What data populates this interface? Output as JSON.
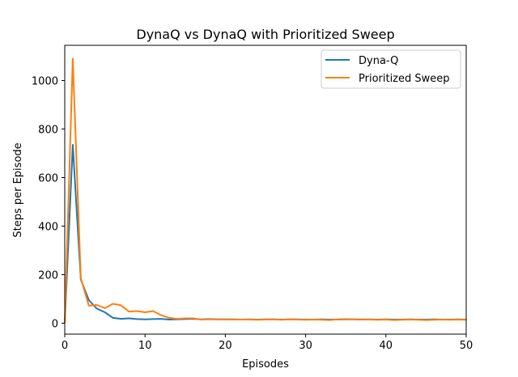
{
  "chart_data": {
    "type": "line",
    "title": "DynaQ vs DynaQ with Prioritized Sweep",
    "xlabel": "Episodes",
    "ylabel": "Steps per Episode",
    "xlim": [
      0,
      50
    ],
    "ylim": [
      -45,
      1145
    ],
    "x_ticks": [
      0,
      10,
      20,
      30,
      40,
      50
    ],
    "y_ticks": [
      0,
      200,
      400,
      600,
      800,
      1000
    ],
    "grid": false,
    "legend_position": "top-right",
    "series": [
      {
        "name": "Dyna-Q",
        "color": "#1f77b4",
        "x": [
          0,
          1,
          2,
          3,
          4,
          5,
          6,
          7,
          8,
          9,
          10,
          11,
          12,
          13,
          14,
          15,
          16,
          17,
          18,
          19,
          20,
          21,
          22,
          23,
          24,
          25,
          26,
          27,
          28,
          29,
          30,
          31,
          32,
          33,
          34,
          35,
          36,
          37,
          38,
          39,
          40,
          41,
          42,
          43,
          44,
          45,
          46,
          47,
          48,
          49,
          50
        ],
        "values": [
          0,
          735,
          180,
          95,
          60,
          45,
          22,
          18,
          20,
          17,
          16,
          17,
          18,
          15,
          16,
          17,
          18,
          16,
          17,
          16,
          16,
          16,
          15,
          16,
          15,
          16,
          16,
          15,
          16,
          16,
          15,
          15,
          16,
          15,
          15,
          16,
          16,
          15,
          16,
          15,
          16,
          15,
          15,
          16,
          15,
          15,
          16,
          15,
          15,
          16,
          15
        ]
      },
      {
        "name": "Prioritized Sweep",
        "color": "#ff7f0e",
        "x": [
          0,
          1,
          2,
          3,
          4,
          5,
          6,
          7,
          8,
          9,
          10,
          11,
          12,
          13,
          14,
          15,
          16,
          17,
          18,
          19,
          20,
          21,
          22,
          23,
          24,
          25,
          26,
          27,
          28,
          29,
          30,
          31,
          32,
          33,
          34,
          35,
          36,
          37,
          38,
          39,
          40,
          41,
          42,
          43,
          44,
          45,
          46,
          47,
          48,
          49,
          50
        ],
        "values": [
          0,
          1090,
          185,
          72,
          75,
          62,
          80,
          74,
          48,
          50,
          45,
          50,
          33,
          22,
          18,
          20,
          20,
          15,
          16,
          16,
          16,
          15,
          15,
          15,
          14,
          15,
          16,
          14,
          16,
          15,
          14,
          15,
          14,
          13,
          16,
          17,
          16,
          16,
          15,
          14,
          15,
          13,
          14,
          15,
          14,
          13,
          14,
          15,
          14,
          15,
          14
        ]
      }
    ]
  }
}
